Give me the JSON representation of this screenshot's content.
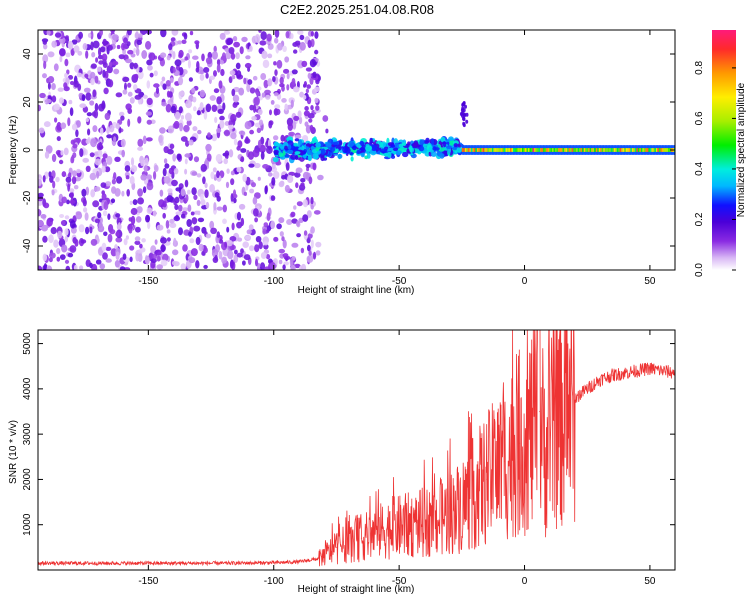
{
  "title": "C2E2.2025.251.04.08.R08",
  "chart_data": [
    {
      "type": "heatmap",
      "title": "C2E2.2025.251.04.08.R08",
      "xlabel": "Height of straight line (km)",
      "ylabel": "Frequency (Hz)",
      "xlim": [
        -194,
        60
      ],
      "ylim": [
        -50,
        50
      ],
      "x_ticks": [
        -150,
        -100,
        -50,
        0,
        50
      ],
      "y_ticks": [
        -40,
        -20,
        0,
        20,
        40
      ],
      "colorbar": {
        "label": "Normalized spectral amplitude",
        "range": [
          0.0,
          0.95
        ],
        "ticks": [
          0.0,
          0.2,
          0.4,
          0.6,
          0.8
        ]
      },
      "description_points": [
        {
          "x_range": [
            -194,
            -82
          ],
          "freq_range": [
            -50,
            50
          ],
          "amplitude": "low, scattered noise (~0.0-0.15)"
        },
        {
          "x_range": [
            -100,
            -25
          ],
          "freq_range": [
            -8,
            8
          ],
          "amplitude": "0.1-0.45, carrier band slightly above 0 Hz"
        },
        {
          "x_range": [
            -25,
            60
          ],
          "freq_range": [
            -2,
            2
          ],
          "amplitude": "0.4-0.95, narrow strong carrier at ~0 Hz"
        }
      ]
    },
    {
      "type": "line",
      "xlabel": "Height of straight line (km)",
      "ylabel": "SNR (10 * v/v)",
      "xlim": [
        -194,
        60
      ],
      "ylim": [
        0,
        5300
      ],
      "x_ticks": [
        -150,
        -100,
        -50,
        0,
        50
      ],
      "y_ticks": [
        1000,
        2000,
        3000,
        4000,
        5000
      ],
      "series": [
        {
          "name": "SNR",
          "color": "#ee3333",
          "x": [
            -194,
            -180,
            -160,
            -140,
            -120,
            -100,
            -90,
            -82,
            -75,
            -65,
            -55,
            -45,
            -35,
            -28,
            -22,
            -15,
            -8,
            -2,
            3,
            6,
            8,
            12,
            18,
            25,
            30,
            35,
            40,
            45,
            50,
            55,
            60
          ],
          "y": [
            150,
            150,
            150,
            150,
            150,
            160,
            180,
            250,
            500,
            700,
            900,
            1000,
            1100,
            1300,
            1600,
            2000,
            2400,
            2800,
            3100,
            3500,
            2600,
            3300,
            3700,
            4000,
            4200,
            4300,
            4350,
            4400,
            4450,
            4400,
            4350
          ]
        }
      ]
    }
  ]
}
